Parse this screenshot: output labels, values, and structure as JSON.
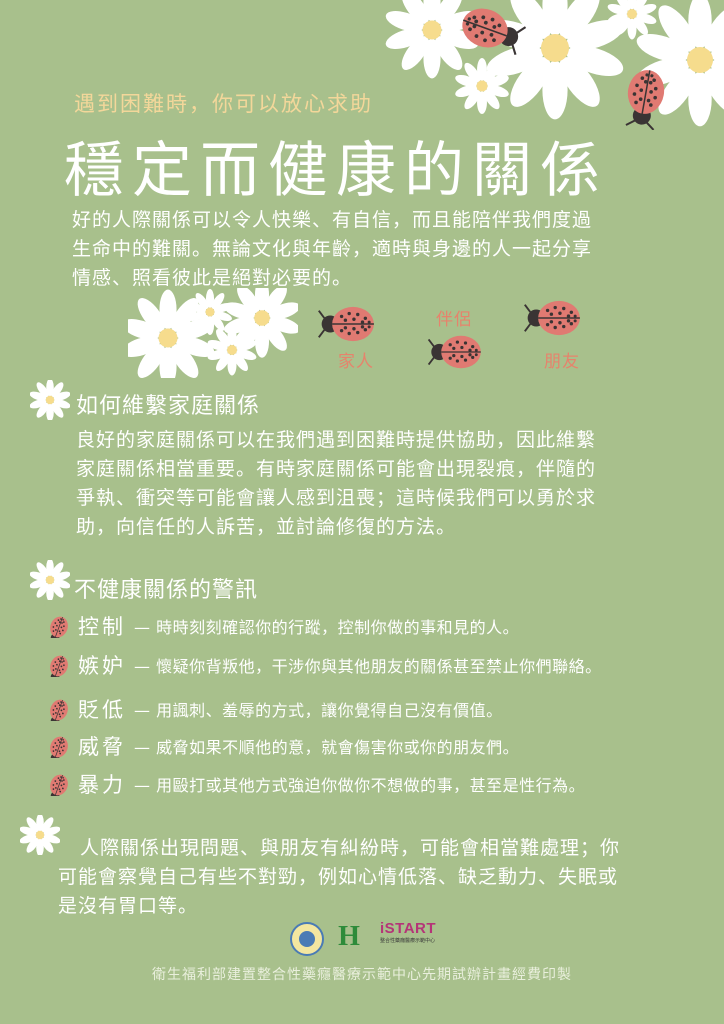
{
  "header": {
    "subtitle": "遇到困難時，你可以放心求助",
    "title": "穩定而健康的關係"
  },
  "intro": {
    "lines": [
      "好的人際關係可以令人快樂、有自信，而且能陪伴我們度過",
      "生命中的難關。無論文化與年齡，適時與身邊的人一起分享",
      "情感、照看彼此是絕對必要的。"
    ]
  },
  "ladybug_labels": {
    "partner": "伴侶",
    "family": "家人",
    "friend": "朋友"
  },
  "family_section": {
    "title": "如何維繫家庭關係",
    "lines": [
      "良好的家庭關係可以在我們遇到困難時提供協助，因此維繫",
      "家庭關係相當重要。有時家庭關係可能會出現裂痕，伴隨的",
      "爭執、衝突等可能會讓人感到沮喪；這時候我們可以勇於求",
      "助，向信任的人訴苦，並討論修復的方法。"
    ]
  },
  "warning_section": {
    "title": "不健康關係的警訊",
    "items": [
      {
        "term": "控制",
        "desc": "— 時時刻刻確認你的行蹤，控制你做的事和見的人。"
      },
      {
        "term": "嫉妒",
        "desc": "— 懷疑你背叛他，干涉你與其他朋友的關係甚至禁止你們聯絡。"
      },
      {
        "term": "貶低",
        "desc": "— 用諷刺、羞辱的方式，讓你覺得自己沒有價值。"
      },
      {
        "term": "威脅",
        "desc": "— 威脅如果不順他的意，就會傷害你或你的朋友們。"
      },
      {
        "term": "暴力",
        "desc": "— 用毆打或其他方式強迫你做你不想做的事，甚至是性行為。"
      }
    ]
  },
  "closing": {
    "lines": [
      "人際關係出現問題、與朋友有糾紛時，可能會相當難處理；你",
      "可能會察覺自己有些不對勁，例如心情低落、缺乏動力、失眠或",
      "是沒有胃口等。"
    ]
  },
  "logos": {
    "istart_text": "iSTART",
    "istart_caption": "整合性藥癮醫療示範中心",
    "h_text": "H"
  },
  "footer": {
    "text": "衛生福利部建置整合性藥癮醫療示範中心先期試辦計畫經費印製"
  },
  "colors": {
    "background": "#a8c08c",
    "accent_yellow": "#f3d79a",
    "ladybug_red": "#e07a72",
    "label_coral": "#e6836c"
  }
}
